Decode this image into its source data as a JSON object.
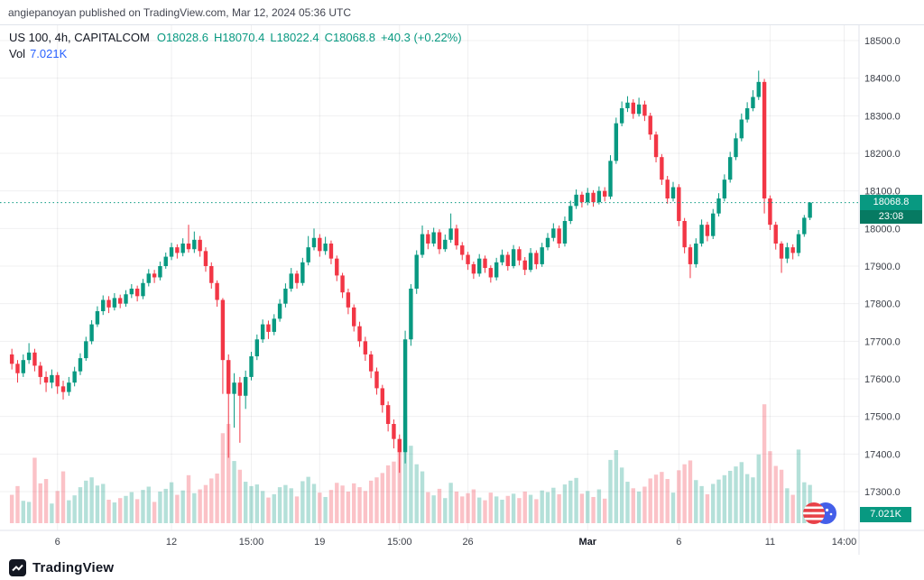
{
  "attribution": "angiepanoyan published on TradingView.com, Mar 12, 2024 05:36 UTC",
  "legend": {
    "symbol_line": "US 100, 4h, CAPITALCOM",
    "ohlc_parts": [
      "O18028.6",
      "H18070.4",
      "L18022.4",
      "C18068.8",
      "+40.3 (+0.22%)"
    ],
    "vol_label": "Vol",
    "vol_value": "7.021K"
  },
  "price_axis": {
    "current_price_label": "18068.8",
    "countdown": "23:08",
    "volume_badge": "7.021K"
  },
  "footer": {
    "brand": "TradingView"
  },
  "colors": {
    "up": "#089981",
    "down": "#F23645",
    "up_vol": "rgba(8,153,129,0.3)",
    "down_vol": "rgba(242,54,69,0.3)",
    "grid": "rgba(42,46,57,0.07)",
    "axis_border": "#e0e3eb",
    "axis_text": "#3c4049",
    "axis_text_major": "#131722",
    "badge_green": "#089981",
    "countdown_green": "#067a62",
    "vol_legend_value": "#2962FF",
    "dotted_price_line": "#089981"
  },
  "chart_data": {
    "type": "candlestick+volume",
    "symbol": "US 100",
    "interval": "4h",
    "exchange": "CAPITALCOM",
    "last_ohlc": {
      "o": 18028.6,
      "h": 18070.4,
      "l": 18022.4,
      "c": 18068.8,
      "change": "+40.3 (+0.22%)"
    },
    "current_price": 18068.8,
    "current_volume_k": 7.021,
    "price_gridlines": [
      18500,
      18400,
      18300,
      18200,
      18100,
      18000,
      17900,
      17800,
      17700,
      17600,
      17500,
      17400,
      17300
    ],
    "y_range": {
      "min": 17260,
      "max": 18540
    },
    "x_ticks": [
      {
        "label": "6",
        "index": 8,
        "major": false
      },
      {
        "label": "12",
        "index": 28,
        "major": false
      },
      {
        "label": "15:00",
        "index": 42,
        "major": false
      },
      {
        "label": "19",
        "index": 54,
        "major": false
      },
      {
        "label": "15:00",
        "index": 68,
        "major": false
      },
      {
        "label": "26",
        "index": 80,
        "major": false
      },
      {
        "label": "Mar",
        "index": 101,
        "major": true
      },
      {
        "label": "6",
        "index": 117,
        "major": false
      },
      {
        "label": "11",
        "index": 133,
        "major": false
      },
      {
        "label": "14:00",
        "index": 146,
        "major": false
      }
    ],
    "vol_max_k": 22,
    "candles": [
      [
        17665,
        17680,
        17625,
        17640,
        5.2
      ],
      [
        17640,
        17650,
        17590,
        17615,
        6.8
      ],
      [
        17615,
        17665,
        17605,
        17650,
        4.1
      ],
      [
        17650,
        17695,
        17640,
        17670,
        3.9
      ],
      [
        17670,
        17680,
        17620,
        17635,
        12.0
      ],
      [
        17635,
        17645,
        17585,
        17605,
        7.3
      ],
      [
        17605,
        17620,
        17565,
        17590,
        8.1
      ],
      [
        17590,
        17625,
        17575,
        17610,
        3.6
      ],
      [
        17610,
        17618,
        17560,
        17580,
        5.9
      ],
      [
        17580,
        17595,
        17545,
        17565,
        9.5
      ],
      [
        17565,
        17605,
        17555,
        17590,
        4.2
      ],
      [
        17590,
        17632,
        17580,
        17620,
        5.1
      ],
      [
        17620,
        17668,
        17610,
        17655,
        6.6
      ],
      [
        17655,
        17712,
        17648,
        17700,
        7.8
      ],
      [
        17700,
        17756,
        17692,
        17745,
        8.4
      ],
      [
        17745,
        17793,
        17738,
        17780,
        6.9
      ],
      [
        17780,
        17822,
        17770,
        17810,
        7.2
      ],
      [
        17810,
        17820,
        17775,
        17790,
        4.3
      ],
      [
        17790,
        17828,
        17782,
        17815,
        3.8
      ],
      [
        17815,
        17824,
        17788,
        17800,
        4.6
      ],
      [
        17800,
        17836,
        17792,
        17825,
        5.0
      ],
      [
        17825,
        17852,
        17815,
        17840,
        5.7
      ],
      [
        17840,
        17848,
        17806,
        17820,
        4.4
      ],
      [
        17820,
        17866,
        17812,
        17855,
        6.1
      ],
      [
        17855,
        17892,
        17846,
        17880,
        6.7
      ],
      [
        17880,
        17890,
        17855,
        17870,
        3.9
      ],
      [
        17870,
        17912,
        17862,
        17900,
        5.8
      ],
      [
        17900,
        17936,
        17893,
        17925,
        6.3
      ],
      [
        17925,
        17962,
        17916,
        17950,
        7.5
      ],
      [
        17950,
        17958,
        17920,
        17935,
        5.2
      ],
      [
        17935,
        17974,
        17926,
        17960,
        6.0
      ],
      [
        17960,
        18010,
        17936,
        17945,
        8.8
      ],
      [
        17945,
        17992,
        17935,
        17970,
        5.5
      ],
      [
        17970,
        17980,
        17925,
        17940,
        6.2
      ],
      [
        17940,
        17950,
        17885,
        17900,
        7.0
      ],
      [
        17900,
        17910,
        17840,
        17855,
        8.2
      ],
      [
        17855,
        17862,
        17792,
        17810,
        9.1
      ],
      [
        17810,
        17815,
        17560,
        17650,
        16.5
      ],
      [
        17650,
        17665,
        17390,
        17560,
        18.2
      ],
      [
        17560,
        17615,
        17470,
        17590,
        11.4
      ],
      [
        17590,
        17605,
        17430,
        17555,
        9.8
      ],
      [
        17555,
        17622,
        17520,
        17605,
        7.6
      ],
      [
        17605,
        17672,
        17596,
        17660,
        6.8
      ],
      [
        17660,
        17718,
        17650,
        17705,
        7.1
      ],
      [
        17705,
        17758,
        17696,
        17745,
        5.9
      ],
      [
        17745,
        17755,
        17706,
        17725,
        4.7
      ],
      [
        17725,
        17772,
        17716,
        17760,
        5.3
      ],
      [
        17760,
        17812,
        17752,
        17800,
        6.6
      ],
      [
        17800,
        17854,
        17790,
        17840,
        7.0
      ],
      [
        17840,
        17895,
        17832,
        17880,
        6.4
      ],
      [
        17880,
        17888,
        17840,
        17855,
        4.9
      ],
      [
        17855,
        17922,
        17848,
        17910,
        7.7
      ],
      [
        17910,
        17980,
        17902,
        17950,
        8.5
      ],
      [
        17950,
        18000,
        17942,
        17975,
        7.2
      ],
      [
        17975,
        17985,
        17925,
        17940,
        5.6
      ],
      [
        17940,
        17978,
        17930,
        17960,
        4.8
      ],
      [
        17960,
        17968,
        17905,
        17920,
        6.1
      ],
      [
        17920,
        17928,
        17860,
        17875,
        7.4
      ],
      [
        17875,
        17882,
        17815,
        17830,
        6.9
      ],
      [
        17830,
        17840,
        17772,
        17790,
        5.8
      ],
      [
        17790,
        17798,
        17726,
        17740,
        7.3
      ],
      [
        17740,
        17752,
        17685,
        17700,
        6.6
      ],
      [
        17700,
        17712,
        17648,
        17665,
        5.9
      ],
      [
        17665,
        17674,
        17602,
        17620,
        7.8
      ],
      [
        17620,
        17630,
        17558,
        17575,
        8.4
      ],
      [
        17575,
        17584,
        17510,
        17530,
        9.2
      ],
      [
        17530,
        17540,
        17460,
        17480,
        10.6
      ],
      [
        17480,
        17492,
        17415,
        17440,
        11.3
      ],
      [
        17440,
        17452,
        17350,
        17405,
        13.8
      ],
      [
        17405,
        17728,
        17375,
        17705,
        19.6
      ],
      [
        17705,
        17852,
        17688,
        17840,
        14.2
      ],
      [
        17840,
        17942,
        17826,
        17930,
        10.8
      ],
      [
        17930,
        18008,
        17922,
        17985,
        9.5
      ],
      [
        17985,
        17996,
        17945,
        17960,
        5.7
      ],
      [
        17960,
        18002,
        17952,
        17990,
        5.1
      ],
      [
        17990,
        17998,
        17932,
        17945,
        6.3
      ],
      [
        17945,
        17984,
        17938,
        17970,
        4.6
      ],
      [
        17970,
        18040,
        17962,
        18000,
        7.4
      ],
      [
        18000,
        18010,
        17944,
        17955,
        5.8
      ],
      [
        17955,
        17964,
        17916,
        17930,
        4.9
      ],
      [
        17930,
        17938,
        17890,
        17905,
        5.5
      ],
      [
        17905,
        17912,
        17866,
        17880,
        6.2
      ],
      [
        17880,
        17932,
        17872,
        17920,
        4.7
      ],
      [
        17920,
        17928,
        17882,
        17895,
        4.2
      ],
      [
        17895,
        17902,
        17856,
        17870,
        5.6
      ],
      [
        17870,
        17922,
        17862,
        17910,
        4.9
      ],
      [
        17910,
        17944,
        17902,
        17930,
        4.3
      ],
      [
        17930,
        17938,
        17888,
        17900,
        5.0
      ],
      [
        17900,
        17956,
        17894,
        17945,
        5.4
      ],
      [
        17945,
        17952,
        17902,
        17915,
        4.6
      ],
      [
        17915,
        17924,
        17876,
        17890,
        5.8
      ],
      [
        17890,
        17948,
        17884,
        17935,
        5.2
      ],
      [
        17935,
        17942,
        17892,
        17905,
        4.4
      ],
      [
        17905,
        17962,
        17898,
        17950,
        6.0
      ],
      [
        17950,
        17988,
        17942,
        17975,
        5.7
      ],
      [
        17975,
        18014,
        17966,
        18000,
        6.5
      ],
      [
        18000,
        18008,
        17948,
        17960,
        5.3
      ],
      [
        17960,
        18032,
        17952,
        18020,
        7.1
      ],
      [
        18020,
        18074,
        18012,
        18060,
        7.8
      ],
      [
        18060,
        18104,
        18052,
        18090,
        8.3
      ],
      [
        18090,
        18098,
        18056,
        18070,
        5.4
      ],
      [
        18070,
        18108,
        18062,
        18095,
        5.9
      ],
      [
        18095,
        18102,
        18058,
        18070,
        4.8
      ],
      [
        18070,
        18112,
        18064,
        18100,
        6.2
      ],
      [
        18100,
        18110,
        18072,
        18085,
        4.5
      ],
      [
        18085,
        18195,
        18078,
        18180,
        11.6
      ],
      [
        18180,
        18295,
        18172,
        18280,
        13.4
      ],
      [
        18280,
        18338,
        18272,
        18320,
        10.2
      ],
      [
        18320,
        18352,
        18310,
        18335,
        7.6
      ],
      [
        18335,
        18344,
        18292,
        18305,
        6.4
      ],
      [
        18305,
        18348,
        18298,
        18330,
        5.8
      ],
      [
        18330,
        18340,
        18286,
        18300,
        6.7
      ],
      [
        18300,
        18308,
        18236,
        18250,
        8.2
      ],
      [
        18250,
        18258,
        18176,
        18190,
        8.9
      ],
      [
        18190,
        18198,
        18116,
        18130,
        9.4
      ],
      [
        18130,
        18140,
        18066,
        18080,
        8.1
      ],
      [
        18080,
        18124,
        18072,
        18110,
        5.6
      ],
      [
        18110,
        18118,
        18006,
        18020,
        9.7
      ],
      [
        18020,
        18028,
        17934,
        17950,
        10.8
      ],
      [
        17950,
        17958,
        17868,
        17905,
        11.5
      ],
      [
        17905,
        17974,
        17896,
        17960,
        7.9
      ],
      [
        17960,
        18024,
        17952,
        18010,
        6.8
      ],
      [
        18010,
        18018,
        17966,
        17980,
        5.3
      ],
      [
        17980,
        18052,
        17972,
        18040,
        7.2
      ],
      [
        18040,
        18094,
        18032,
        18080,
        8.0
      ],
      [
        18080,
        18144,
        18072,
        18130,
        8.8
      ],
      [
        18130,
        18204,
        18122,
        18190,
        9.6
      ],
      [
        18190,
        18254,
        18182,
        18240,
        10.4
      ],
      [
        18240,
        18306,
        18232,
        18290,
        11.2
      ],
      [
        18290,
        18336,
        18282,
        18320,
        9.0
      ],
      [
        18320,
        18368,
        18312,
        18350,
        8.4
      ],
      [
        18350,
        18420,
        18342,
        18390,
        12.6
      ],
      [
        18390,
        18398,
        18040,
        18080,
        21.8
      ],
      [
        18080,
        18088,
        17996,
        18010,
        13.2
      ],
      [
        18010,
        18018,
        17944,
        17960,
        10.5
      ],
      [
        17960,
        17966,
        17882,
        17920,
        9.8
      ],
      [
        17920,
        17962,
        17908,
        17950,
        6.4
      ],
      [
        17950,
        17958,
        17918,
        17935,
        5.2
      ],
      [
        17935,
        17996,
        17926,
        17985,
        13.5
      ],
      [
        17985,
        18036,
        17978,
        18028.6,
        7.5
      ],
      [
        18028.6,
        18070.4,
        18022.4,
        18068.8,
        7.021
      ]
    ]
  }
}
